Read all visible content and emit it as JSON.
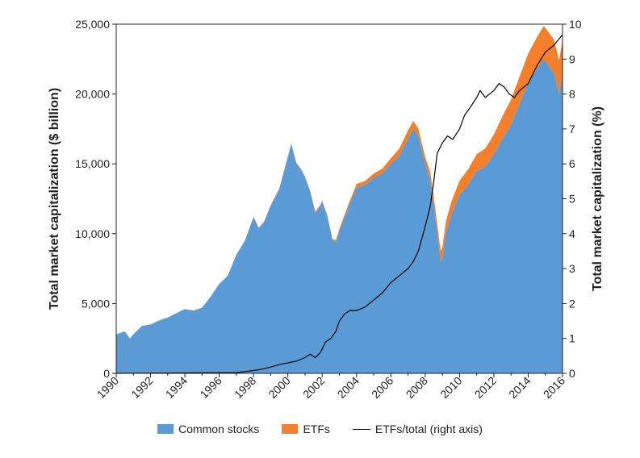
{
  "chart_data": {
    "type": "area",
    "y_left_label": "Total market capitalization ($ billion)",
    "y_right_label": "Total market capitalization (%)",
    "x_ticks": [
      "1990",
      "1992",
      "1994",
      "1996",
      "1998",
      "2000",
      "2002",
      "2004",
      "2006",
      "2008",
      "2010",
      "2012",
      "2014",
      "2016"
    ],
    "y_left_ticks": [
      "0",
      "5,000",
      "10,000",
      "15,000",
      "20,000",
      "25,000"
    ],
    "y_right_ticks": [
      "0",
      "1",
      "2",
      "3",
      "4",
      "5",
      "6",
      "7",
      "8",
      "9",
      "10"
    ],
    "xlim": [
      1990,
      2016
    ],
    "ylim_left": [
      0,
      25000
    ],
    "ylim_right": [
      0,
      10
    ],
    "colors": {
      "common": "#5b9bd5",
      "etf": "#f47f2a",
      "ratio": "#000000"
    },
    "series": [
      {
        "name": "Common stocks",
        "axis": "left",
        "x": [
          1990,
          1990.5,
          1990.8,
          1991,
          1991.5,
          1992,
          1992.5,
          1993,
          1993.5,
          1994,
          1994.5,
          1995,
          1995.5,
          1996,
          1996.5,
          1997,
          1997.5,
          1998,
          1998.3,
          1998.6,
          1999,
          1999.5,
          2000,
          2000.2,
          2000.5,
          2000.8,
          2001,
          2001.3,
          2001.6,
          2001.9,
          2002,
          2002.3,
          2002.6,
          2002.8,
          2003,
          2003.5,
          2004,
          2004.5,
          2005,
          2005.5,
          2006,
          2006.5,
          2007,
          2007.3,
          2007.6,
          2007.9,
          2008,
          2008.3,
          2008.6,
          2008.9,
          2009,
          2009.2,
          2009.5,
          2010,
          2010.5,
          2011,
          2011.5,
          2012,
          2012.5,
          2013,
          2013.5,
          2014,
          2014.5,
          2014.9,
          2015.2,
          2015.5,
          2015.8,
          2016
        ],
        "values": [
          2800,
          3000,
          2500,
          2800,
          3400,
          3500,
          3800,
          4000,
          4300,
          4600,
          4500,
          4700,
          5500,
          6400,
          7000,
          8500,
          9500,
          11200,
          10400,
          10800,
          12000,
          13200,
          15500,
          16400,
          15000,
          14500,
          14000,
          13000,
          11500,
          12000,
          12300,
          11200,
          9500,
          9400,
          10200,
          11800,
          13300,
          13500,
          14000,
          14300,
          15000,
          15600,
          16800,
          17500,
          17000,
          15500,
          15000,
          13800,
          11000,
          8000,
          8200,
          10000,
          11300,
          12800,
          13500,
          14500,
          14800,
          15700,
          16800,
          17800,
          19300,
          20800,
          21800,
          22500,
          22000,
          21500,
          20000,
          21500
        ]
      },
      {
        "name": "ETFs",
        "axis": "left",
        "x": [
          1990,
          1997,
          1998,
          1999,
          2000,
          2001,
          2002,
          2003,
          2004,
          2005,
          2006,
          2007,
          2008,
          2009,
          2010,
          2011,
          2012,
          2013,
          2014,
          2015,
          2016
        ],
        "values": [
          0,
          5,
          20,
          40,
          60,
          80,
          90,
          160,
          250,
          300,
          400,
          600,
          500,
          800,
          1000,
          1200,
          1400,
          1800,
          2100,
          2400,
          2400
        ]
      },
      {
        "name": "ETFs/total (right axis)",
        "axis": "right",
        "x": [
          1990,
          1997,
          1997.5,
          1998,
          1998.5,
          1999,
          1999.5,
          2000,
          2000.5,
          2001,
          2001.3,
          2001.6,
          2001.9,
          2002.2,
          2002.5,
          2002.8,
          2003,
          2003.3,
          2003.6,
          2004,
          2004.5,
          2005,
          2005.5,
          2006,
          2006.5,
          2007,
          2007.3,
          2007.6,
          2008,
          2008.3,
          2008.5,
          2008.7,
          2009,
          2009.3,
          2009.6,
          2010,
          2010.3,
          2010.6,
          2011,
          2011.2,
          2011.5,
          2012,
          2012.3,
          2012.6,
          2012.9,
          2013.2,
          2013.5,
          2014,
          2014.5,
          2015,
          2015.5,
          2016
        ],
        "values": [
          0,
          0.02,
          0.05,
          0.08,
          0.12,
          0.18,
          0.25,
          0.3,
          0.35,
          0.45,
          0.55,
          0.45,
          0.6,
          0.9,
          1.0,
          1.2,
          1.5,
          1.7,
          1.8,
          1.8,
          1.9,
          2.1,
          2.3,
          2.6,
          2.8,
          3.0,
          3.2,
          3.5,
          4.2,
          4.8,
          5.5,
          6.3,
          6.6,
          6.8,
          6.7,
          7.0,
          7.4,
          7.6,
          7.9,
          8.1,
          7.9,
          8.1,
          8.3,
          8.2,
          8.0,
          7.9,
          8.1,
          8.3,
          8.8,
          9.2,
          9.4,
          9.7
        ]
      }
    ],
    "legend_position": "bottom"
  },
  "legend": [
    {
      "label": "Common stocks",
      "color": "#5b9bd5",
      "kind": "fill"
    },
    {
      "label": "ETFs",
      "color": "#f47f2a",
      "kind": "fill"
    },
    {
      "label": "ETFs/total (right axis)",
      "color": "#000000",
      "kind": "line"
    }
  ]
}
